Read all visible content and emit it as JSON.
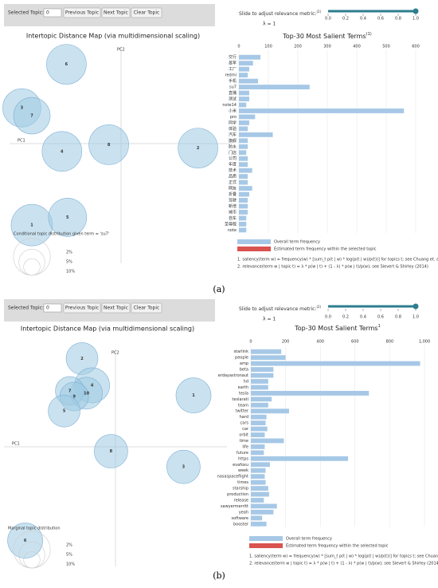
{
  "panels": [
    {
      "label": "(a)",
      "selected_topic_label": "Selected Topic:",
      "selected_topic": 0,
      "buttons": [
        "Previous Topic",
        "Next Topic",
        "Clear Topic"
      ],
      "slider_label": "Slide to adjust relevance metric:",
      "slider_marker": "(2)",
      "lambda_label": "λ = 1",
      "slider_value": 1,
      "slider_lim": [
        0,
        1
      ],
      "slider_ticks": [
        {
          "value": 0,
          "label": "0.0"
        },
        {
          "value": 0.2,
          "label": "0.2"
        },
        {
          "value": 0.4,
          "label": "0.4"
        },
        {
          "value": 0.6,
          "label": "0.6"
        },
        {
          "value": 0.8,
          "label": "0.8"
        },
        {
          "value": 1,
          "label": "1.0"
        }
      ],
      "footnotes": [
        "1. saliency(term w) = frequency(w) * [sum_t p(t | w) * log(p(t | w)/p(t))] for topics t; see Chuang et. al (2012)",
        "2. relevance(term w | topic t) = λ * p(w | t) + (1 - λ) * p(w | t)/p(w); see Sievert & Shirley (2014)"
      ]
    },
    {
      "label": "(b)",
      "selected_topic_label": "Selected Topic:",
      "selected_topic": 0,
      "buttons": [
        "Previous Topic",
        "Next Topic",
        "Clear Topic"
      ],
      "slider_label": "Slide to adjust relevance metric:",
      "slider_marker": "(2)",
      "lambda_label": "λ = 1",
      "slider_value": 1,
      "slider_lim": [
        0,
        1
      ],
      "slider_ticks": [
        {
          "value": 0,
          "label": "0.0"
        },
        {
          "value": 0.2,
          "label": "0.2"
        },
        {
          "value": 0.4,
          "label": "0.4"
        },
        {
          "value": 0.6,
          "label": "0.6"
        },
        {
          "value": 0.8,
          "label": "0.8"
        },
        {
          "value": 1,
          "label": "1.0"
        }
      ],
      "footnotes": [
        "1. saliency(term w) = frequency(w) * [sum_t p(t | w) * log(p(t | w)/p(t))] for topics t; see Chuang et. al (2012)",
        "2. relevance(term w | topic t) = λ * p(w | t) + (1 - λ) * p(w | t)/p(w); see Sievert & Shirley (2014)"
      ]
    }
  ],
  "chart_data": [
    {
      "type": "scatter",
      "title": "Intertopic Distance Map (via multidimensional scaling)",
      "xlabel": "PC1",
      "ylabel": "PC2",
      "labels": [
        "6",
        "3",
        "7",
        "4",
        "8",
        "2",
        "1",
        "5"
      ],
      "x": [
        -0.49,
        -0.89,
        -0.8,
        -0.53,
        -0.11,
        0.69,
        -0.8,
        -0.48
      ],
      "values": [
        0.71,
        0.32,
        0.25,
        -0.07,
        -0.01,
        -0.04,
        -0.73,
        -0.66
      ],
      "sizes": [
        11.7,
        10.8,
        9.9,
        11.7,
        11.7,
        11.7,
        12.7,
        10.8
      ],
      "color": "#9ecae1",
      "xlim": [
        -1,
        1
      ],
      "ylim": [
        -1,
        1
      ],
      "size_legend": [
        {
          "value": 2,
          "label": "2%"
        },
        {
          "value": 5,
          "label": "5%"
        },
        {
          "value": 10,
          "label": "10%"
        }
      ],
      "caption": "Conditional topic distribution given term = 'su7'"
    },
    {
      "type": "bar",
      "title": "Top-30 Most Salient Terms",
      "title_marker": "(1)",
      "categories": [
        "交行",
        "蔷军",
        "工厂",
        "redmi",
        "手机",
        "su7",
        "直播",
        "测试",
        "note14",
        "小米",
        "pro",
        "同学",
        "体验",
        "汽车",
        "旗舰",
        "防水",
        "门店",
        "公司",
        "年度",
        "技术",
        "品质",
        "正式",
        "网友",
        "折叠",
        "驾驶",
        "新增",
        "城市",
        "自车",
        "至尊版",
        "note"
      ],
      "values": [
        73,
        48,
        35,
        30,
        65,
        240,
        35,
        35,
        25,
        560,
        55,
        35,
        30,
        115,
        30,
        30,
        25,
        30,
        30,
        45,
        30,
        30,
        45,
        35,
        30,
        30,
        30,
        25,
        25,
        25
      ],
      "color": "#a6c8e6",
      "xlim": [
        0,
        600
      ],
      "xticks": [
        0,
        100,
        200,
        300,
        400,
        500,
        600
      ],
      "legend": [
        {
          "name": "Overall term frequency",
          "color": "#a6c8e6"
        },
        {
          "name": "Estimated term frequency within the selected topic",
          "color": "#d9534f"
        }
      ]
    },
    {
      "type": "scatter",
      "title": "Intertopic Distance Map (via multidimensional scaling)",
      "xlabel": "PC1",
      "ylabel": "PC2",
      "labels": [
        "2",
        "4",
        "10",
        "7",
        "9",
        "5",
        "1",
        "8",
        "3",
        "6"
      ],
      "x": [
        -0.3,
        -0.21,
        -0.26,
        -0.41,
        -0.37,
        -0.46,
        0.7,
        -0.04,
        0.61,
        -0.81
      ],
      "values": [
        0.79,
        0.55,
        0.48,
        0.5,
        0.45,
        0.32,
        0.46,
        -0.04,
        -0.18,
        -0.84
      ],
      "sizes": [
        7.5,
        9.1,
        7.5,
        6.1,
        6.1,
        7.5,
        9.1,
        8.3,
        8.3,
        9.1
      ],
      "color": "#9ecae1",
      "xlim": [
        -1,
        1
      ],
      "ylim": [
        -1,
        1
      ],
      "size_legend": [
        {
          "value": 2,
          "label": "2%"
        },
        {
          "value": 5,
          "label": "5%"
        },
        {
          "value": 10,
          "label": "10%"
        }
      ],
      "caption": "Marginal topic distribution"
    },
    {
      "type": "bar",
      "title": "Top-30 Most Salient Terms",
      "title_marker": "1",
      "categories": [
        "starlink",
        "people",
        "amp",
        "beta",
        "erdayastronaut",
        "hd",
        "earth",
        "tesla",
        "teslarati",
        "team",
        "twitter",
        "hard",
        "cars",
        "car",
        "orbit",
        "time",
        "life",
        "future",
        "https",
        "evafoxu",
        "week",
        "nasaspaceflight",
        "times",
        "starship",
        "production",
        "release",
        "sawyermerritt",
        "yeah",
        "software",
        "booster"
      ],
      "values": [
        175,
        200,
        975,
        130,
        130,
        100,
        100,
        680,
        120,
        100,
        220,
        90,
        85,
        95,
        80,
        190,
        80,
        75,
        560,
        110,
        85,
        80,
        85,
        100,
        105,
        75,
        150,
        130,
        65,
        90
      ],
      "color": "#a6c8e6",
      "xlim": [
        0,
        1000
      ],
      "xticks": [
        0,
        200,
        400,
        600,
        800,
        {
          "value": 1000,
          "label": "1,000"
        }
      ],
      "legend": [
        {
          "name": "Overall term frequency",
          "color": "#a6c8e6"
        },
        {
          "name": "Estimated term frequency within the selected topic",
          "color": "#d9534f"
        }
      ]
    }
  ]
}
